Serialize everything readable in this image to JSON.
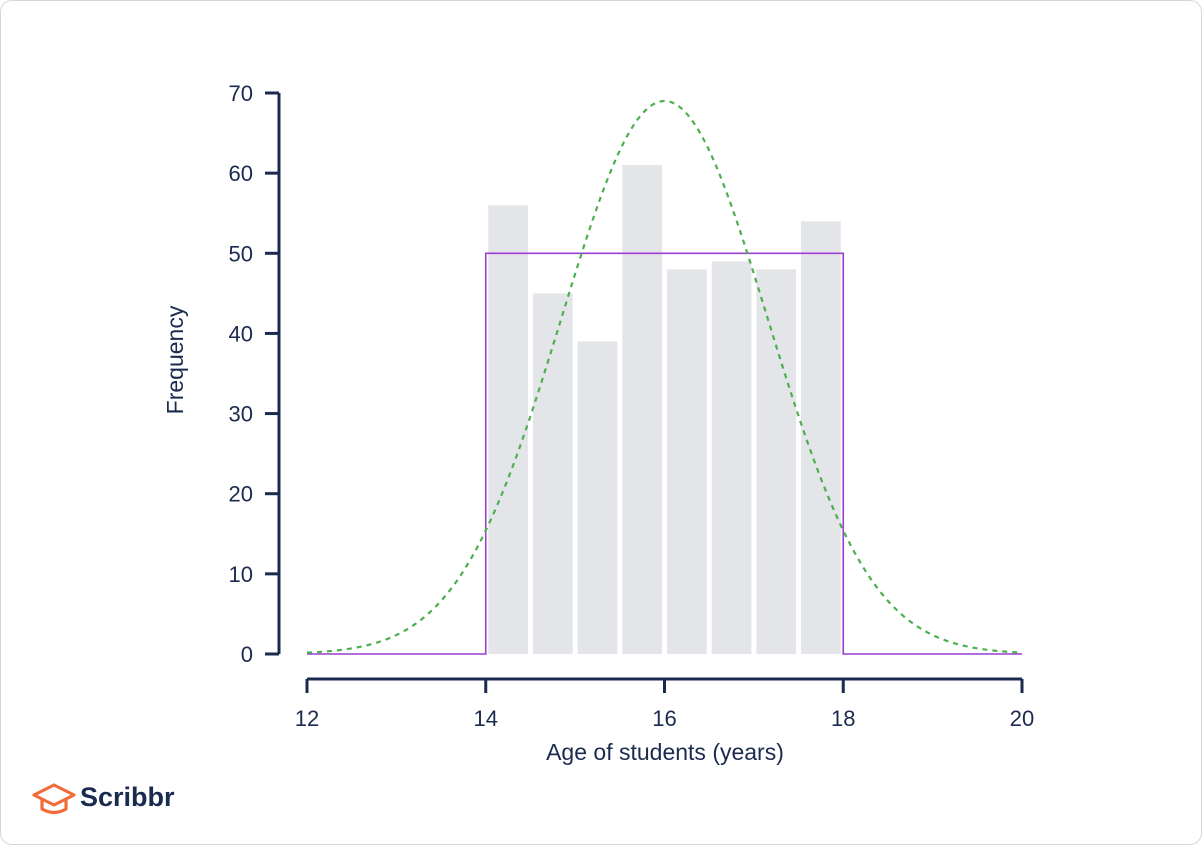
{
  "chart_data": {
    "type": "bar",
    "xlabel": "Age of students (years)",
    "ylabel": "Frequency",
    "xlim": [
      12,
      20
    ],
    "ylim": [
      0,
      70
    ],
    "xticks": [
      12,
      14,
      16,
      18,
      20
    ],
    "yticks": [
      0,
      10,
      20,
      30,
      40,
      50,
      60,
      70
    ],
    "bins": [
      {
        "x0": 14.0,
        "x1": 14.5,
        "value": 56
      },
      {
        "x0": 14.5,
        "x1": 15.0,
        "value": 45
      },
      {
        "x0": 15.0,
        "x1": 15.5,
        "value": 39
      },
      {
        "x0": 15.5,
        "x1": 16.0,
        "value": 61
      },
      {
        "x0": 16.0,
        "x1": 16.5,
        "value": 48
      },
      {
        "x0": 16.5,
        "x1": 17.0,
        "value": 49
      },
      {
        "x0": 17.0,
        "x1": 17.5,
        "value": 48
      },
      {
        "x0": 17.5,
        "x1": 18.0,
        "value": 54
      }
    ],
    "uniform_curve": {
      "points": [
        [
          12,
          0
        ],
        [
          14,
          0
        ],
        [
          14,
          50
        ],
        [
          18,
          50
        ],
        [
          18,
          0
        ],
        [
          20,
          0
        ]
      ],
      "color": "#9b3fd1"
    },
    "normal_curve": {
      "mean": 16,
      "sd": 1.155,
      "peak": 69,
      "color": "#4caf50",
      "style": "dashed"
    },
    "bar_color": "#e4e5e9",
    "grid": false,
    "axis_color": "#1b2b4f"
  },
  "brand": {
    "name": "Scribbr",
    "icon": "graduation-cap-icon",
    "icon_color": "#f26b3a"
  }
}
